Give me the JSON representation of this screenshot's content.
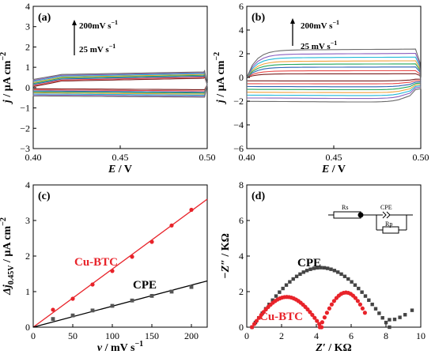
{
  "chart_data": [
    {
      "id": "a",
      "type": "line",
      "panel_label": "(a)",
      "xlabel_var": "E",
      "xlabel_unit": " / V",
      "ylabel_var": "j",
      "ylabel_unit": " / µA cm",
      "ylabel_sup": "−2",
      "xlim": [
        0.4,
        0.5
      ],
      "ylim": [
        -3,
        4
      ],
      "xticks": [
        0.4,
        0.45,
        0.5
      ],
      "xtick_labels": [
        "0.40",
        "0.45",
        "0.50"
      ],
      "yticks": [
        -3,
        -2,
        -1,
        0,
        1,
        2,
        3,
        4
      ],
      "ytick_labels": [
        "−3",
        "−2",
        "−1",
        "0",
        "1",
        "2",
        "3",
        "4"
      ],
      "annotation_top": "200mV s",
      "annotation_bottom": "25  mV s",
      "annotation_sup": "−1",
      "scan_rates_mV_s": [
        25,
        50,
        75,
        100,
        125,
        150,
        175,
        200
      ],
      "series": [
        {
          "anodic": [
            0.05,
            0.46
          ],
          "cathodic": [
            -0.04,
            -0.1
          ]
        },
        {
          "anodic": [
            0.1,
            0.51
          ],
          "cathodic": [
            -0.09,
            -0.16
          ]
        },
        {
          "anodic": [
            0.15,
            0.56
          ],
          "cathodic": [
            -0.14,
            -0.22
          ]
        },
        {
          "anodic": [
            0.2,
            0.61
          ],
          "cathodic": [
            -0.19,
            -0.27
          ]
        },
        {
          "anodic": [
            0.25,
            0.65
          ],
          "cathodic": [
            -0.24,
            -0.32
          ]
        },
        {
          "anodic": [
            0.3,
            0.69
          ],
          "cathodic": [
            -0.29,
            -0.37
          ]
        },
        {
          "anodic": [
            0.35,
            0.73
          ],
          "cathodic": [
            -0.34,
            -0.42
          ]
        },
        {
          "anodic": [
            0.4,
            0.77
          ],
          "cathodic": [
            -0.39,
            -0.47
          ]
        }
      ]
    },
    {
      "id": "b",
      "type": "line",
      "panel_label": "(b)",
      "xlabel_var": "E",
      "xlabel_unit": " / V",
      "ylabel_var": "j",
      "ylabel_unit": " / µA cm",
      "ylabel_sup": "−2",
      "xlim": [
        0.4,
        0.5
      ],
      "ylim": [
        -6,
        6
      ],
      "xticks": [
        0.4,
        0.45,
        0.5
      ],
      "xtick_labels": [
        "0.40",
        "0.45",
        "0.50"
      ],
      "yticks": [
        -6,
        -4,
        -2,
        0,
        2,
        4,
        6
      ],
      "ytick_labels": [
        "−6",
        "−4",
        "−2",
        "0",
        "2",
        "4",
        "6"
      ],
      "annotation_top": "200mV s",
      "annotation_bottom": "25  mV s",
      "annotation_sup": "−1",
      "scan_rates_mV_s": [
        25,
        50,
        75,
        100,
        125,
        150,
        175,
        200
      ],
      "series": [
        {
          "anodic": 0.3,
          "cathodic": -0.3
        },
        {
          "anodic": 0.55,
          "cathodic": -0.55
        },
        {
          "anodic": 0.85,
          "cathodic": -0.8
        },
        {
          "anodic": 1.1,
          "cathodic": -1.05
        },
        {
          "anodic": 1.35,
          "cathodic": -1.3
        },
        {
          "anodic": 1.65,
          "cathodic": -1.55
        },
        {
          "anodic": 1.95,
          "cathodic": -1.8
        },
        {
          "anodic": 2.3,
          "cathodic": -2.1
        }
      ]
    },
    {
      "id": "c",
      "type": "scatter",
      "panel_label": "(c)",
      "xlabel_var": "v",
      "xlabel_unit": " / mV s",
      "xlabel_sup": "−1",
      "ylabel_var": "Δj",
      "ylabel_sub": "0.45V",
      "ylabel_unit": " / µA cm",
      "ylabel_sup": "−2",
      "xlim": [
        0,
        220
      ],
      "ylim": [
        0,
        4
      ],
      "xticks": [
        0,
        50,
        100,
        150,
        200
      ],
      "xtick_labels": [
        "0",
        "50",
        "100",
        "150",
        "200"
      ],
      "yticks": [
        0,
        1,
        2,
        3,
        4
      ],
      "ytick_labels": [
        "0",
        "1",
        "2",
        "3",
        "4"
      ],
      "series": [
        {
          "name": "Cu-BTC",
          "color": "#e8232a",
          "marker": "circle",
          "x": [
            25,
            50,
            75,
            100,
            125,
            150,
            175,
            200
          ],
          "y": [
            0.49,
            0.8,
            1.2,
            1.58,
            1.98,
            2.4,
            2.86,
            3.3
          ],
          "fit": {
            "slope": 0.01636,
            "intercept": 0.0
          }
        },
        {
          "name": "CPE",
          "color": "#000000",
          "marker": "square",
          "x": [
            25,
            50,
            75,
            100,
            125,
            150,
            175,
            200
          ],
          "y": [
            0.23,
            0.33,
            0.47,
            0.6,
            0.75,
            0.88,
            1.0,
            1.13
          ],
          "fit": {
            "slope": 0.00591,
            "intercept": 0.0
          }
        }
      ]
    },
    {
      "id": "d",
      "type": "scatter",
      "panel_label": "(d)",
      "xlabel_var": "Z′",
      "xlabel_unit": " / KΩ",
      "ylabel_var": "−Z″",
      "ylabel_unit": " / KΩ",
      "xlim": [
        0,
        10
      ],
      "ylim": [
        0,
        8
      ],
      "xticks": [
        0,
        2,
        4,
        6,
        8,
        10
      ],
      "xtick_labels": [
        "0",
        "2",
        "4",
        "6",
        "8",
        "10"
      ],
      "yticks": [
        0,
        2,
        4,
        6,
        8
      ],
      "ytick_labels": [
        "0",
        "2",
        "4",
        "6",
        "8"
      ],
      "circuit": {
        "rs_label": "Rs",
        "cpe_label": "CPE",
        "rp_label": "Rp"
      },
      "series": [
        {
          "name": "CPE",
          "color": "#444444",
          "marker": "square",
          "arc": {
            "x_start": 0.3,
            "x_end": 8.2,
            "peak": 3.35
          },
          "tail": [
            [
              8.2,
              0.42
            ],
            [
              8.5,
              0.44
            ],
            [
              8.8,
              0.55
            ],
            [
              9.1,
              0.7
            ],
            [
              9.5,
              0.95
            ]
          ]
        },
        {
          "name": "Cu-BTC",
          "color": "#e8232a",
          "marker": "circle",
          "arc": {
            "x_start": 0.3,
            "x_end": 4.3,
            "peak": 1.7
          },
          "arc2": {
            "x_start": 4.2,
            "x_end": 7.2,
            "peak": 1.95,
            "x_stop": 6.8
          }
        }
      ]
    }
  ]
}
